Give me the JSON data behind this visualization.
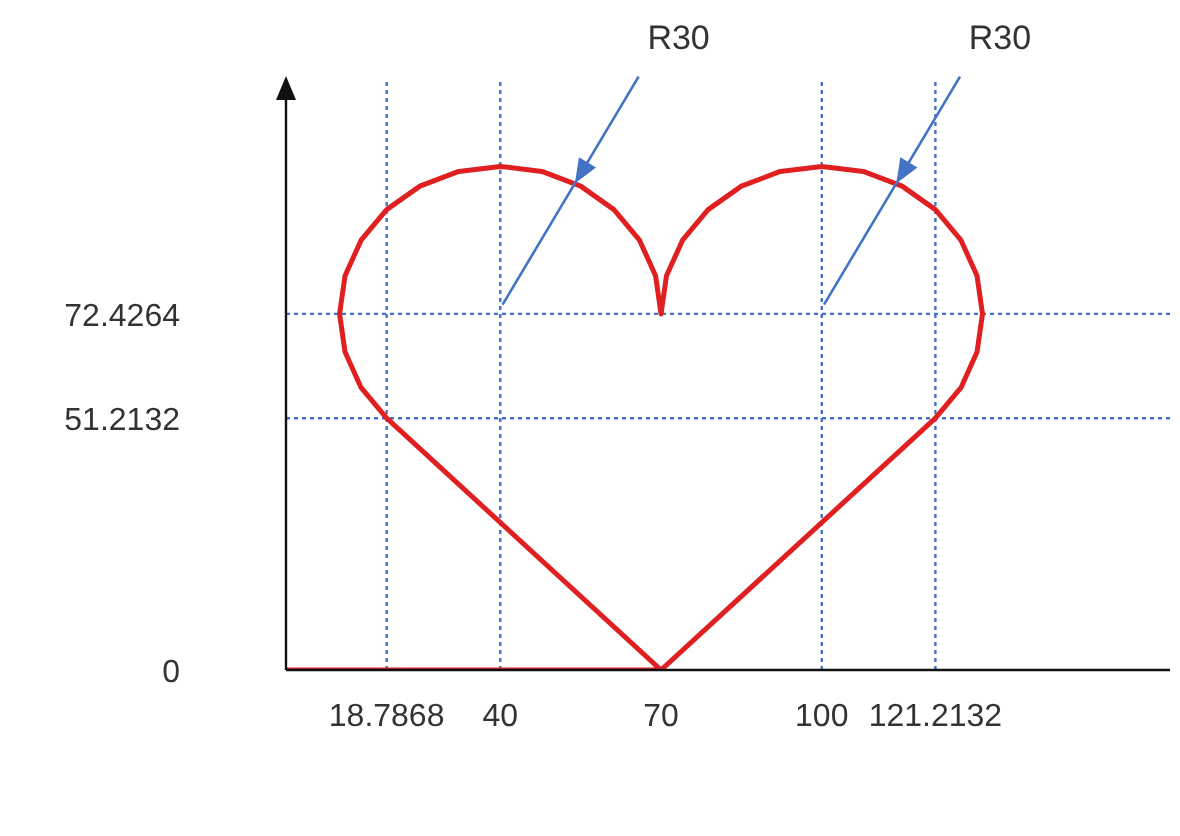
{
  "chart_data": {
    "type": "line",
    "xlim": [
      0,
      165
    ],
    "ylim": [
      0,
      120
    ],
    "xticks": [
      18.7868,
      40,
      70,
      100,
      121.2132
    ],
    "yticks": [
      0,
      51.2132,
      72.4264
    ],
    "series": [
      {
        "color": "#e02020",
        "x": [
          0,
          70,
          18.787,
          14.019,
          11.022,
          10,
          11.022,
          14.019,
          18.787,
          25,
          32.235,
          40,
          47.765,
          55,
          61.213,
          65.981,
          68.978,
          70,
          71.022,
          74.019,
          78.787,
          85,
          92.235,
          100,
          107.765,
          115,
          121.213,
          125.981,
          128.978,
          130,
          128.978,
          125.981,
          121.213,
          70
        ],
        "values": [
          0,
          0,
          51.213,
          57.426,
          64.662,
          72.426,
          80.191,
          87.426,
          93.64,
          98.407,
          101.404,
          102.426,
          101.404,
          98.407,
          93.64,
          87.426,
          80.191,
          72.426,
          80.191,
          87.426,
          93.64,
          98.407,
          101.404,
          102.426,
          101.404,
          98.407,
          93.64,
          87.426,
          80.191,
          72.426,
          64.662,
          57.426,
          51.213,
          0
        ]
      }
    ],
    "ref_lines": [
      {
        "axis": "y",
        "value": 72.4264,
        "color": "#4472c4",
        "line_style": "dotted"
      },
      {
        "axis": "y",
        "value": 51.2132,
        "color": "#4472c4",
        "line_style": "dotted"
      },
      {
        "axis": "x",
        "value": 18.7868,
        "color": "#4472c4",
        "line_style": "dotted"
      },
      {
        "axis": "x",
        "value": 40,
        "color": "#4472c4",
        "line_style": "dotted"
      },
      {
        "axis": "x",
        "value": 100,
        "color": "#4472c4",
        "line_style": "dotted"
      },
      {
        "axis": "x",
        "value": 121.2132,
        "color": "#4472c4",
        "line_style": "dotted"
      }
    ],
    "annotations": [
      "R30",
      "R30"
    ]
  }
}
